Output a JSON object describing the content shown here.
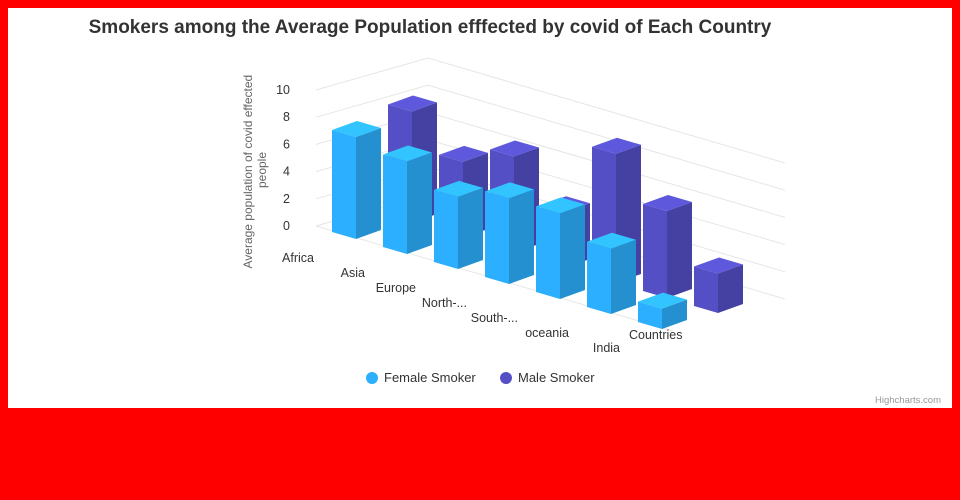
{
  "chart_data": {
    "type": "bar",
    "title": "Smokers among the Average Population efffected by covid of Each Country",
    "ylabel": "Average population of covid effected people",
    "xlabel": "Countries",
    "categories": [
      "Africa",
      "Asia",
      "Europe",
      "North-...",
      "South-...",
      "oceania",
      "India"
    ],
    "series": [
      {
        "name": "Female Smoker",
        "color": "#2caffe",
        "values": [
          7.5,
          6.8,
          5.3,
          6.3,
          6.3,
          4.8,
          1.5
        ]
      },
      {
        "name": "Male Smoker",
        "color": "#544fc5",
        "values": [
          8.2,
          5.6,
          7.1,
          4.1,
          9.5,
          6.4,
          2.9
        ]
      }
    ],
    "yticks": [
      0,
      2,
      4,
      6,
      8,
      10
    ],
    "ylim": [
      0,
      10
    ],
    "grid": true,
    "legend_position": "bottom-center",
    "credits": "Highcharts.com"
  }
}
